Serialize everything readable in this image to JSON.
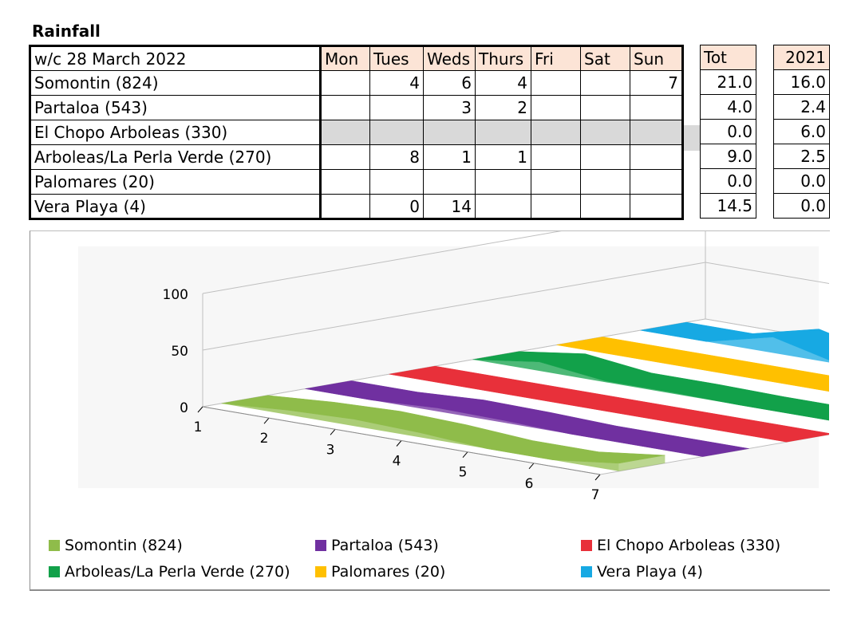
{
  "title": "Rainfall",
  "table": {
    "header": [
      "w/c 28 March 2022",
      "Mon",
      "Tues",
      "Weds",
      "Thurs",
      "Fri",
      "Sat",
      "Sun"
    ],
    "rows": [
      {
        "label": "Somontin (824)",
        "cells": [
          "",
          "4",
          "6",
          "4",
          "",
          "",
          "7"
        ],
        "tot": "21.0",
        "y2021": "16.0",
        "shaded": false
      },
      {
        "label": "Partaloa (543)",
        "cells": [
          "",
          "",
          "3",
          "2",
          "",
          "",
          ""
        ],
        "tot": "4.0",
        "y2021": "2.4",
        "shaded": false
      },
      {
        "label": "El Chopo Arboleas (330)",
        "cells": [
          "",
          "",
          "",
          "",
          "",
          "",
          ""
        ],
        "tot": "0.0",
        "y2021": "6.0",
        "shaded": true
      },
      {
        "label": "Arboleas/La Perla Verde (270)",
        "cells": [
          "",
          "8",
          "1",
          "1",
          "",
          "",
          ""
        ],
        "tot": "9.0",
        "y2021": "2.5",
        "shaded": false
      },
      {
        "label": "Palomares (20)",
        "cells": [
          "",
          "",
          "",
          "",
          "",
          "",
          ""
        ],
        "tot": "0.0",
        "y2021": "0.0",
        "shaded": false
      },
      {
        "label": "Vera Playa (4)",
        "cells": [
          "",
          "0",
          "14",
          "",
          "",
          "",
          ""
        ],
        "tot": "14.5",
        "y2021": "0.0",
        "shaded": false
      }
    ],
    "tot_header": "Tot",
    "y2021_header": "2021"
  },
  "chart_data": {
    "type": "area",
    "subtype": "3d-area",
    "categories": [
      "1",
      "2",
      "3",
      "4",
      "5",
      "6",
      "7"
    ],
    "y_ticks": [
      "0",
      "50",
      "100"
    ],
    "ylim": [
      0,
      100
    ],
    "grid": true,
    "legend_position": "bottom",
    "series": [
      {
        "name": "Somontin (824)",
        "color": "#8fbc4a",
        "values": [
          0,
          4,
          6,
          4,
          0,
          0,
          7
        ]
      },
      {
        "name": "Partaloa (543)",
        "color": "#7030a0",
        "values": [
          0,
          0,
          3,
          2,
          0,
          0,
          0
        ]
      },
      {
        "name": "El Chopo Arboleas (330)",
        "color": "#e8303a",
        "values": [
          0,
          0,
          0,
          0,
          0,
          0,
          0
        ]
      },
      {
        "name": "Arboleas/La Perla Verde (270)",
        "color": "#12a14a",
        "values": [
          0,
          8,
          1,
          1,
          0,
          0,
          0
        ]
      },
      {
        "name": "Palomares (20)",
        "color": "#ffc000",
        "values": [
          0,
          0,
          0,
          0,
          0,
          0,
          0
        ]
      },
      {
        "name": "Vera Playa (4)",
        "color": "#17a9e3",
        "values": [
          0,
          0,
          14,
          0,
          0,
          0,
          0
        ]
      }
    ]
  }
}
